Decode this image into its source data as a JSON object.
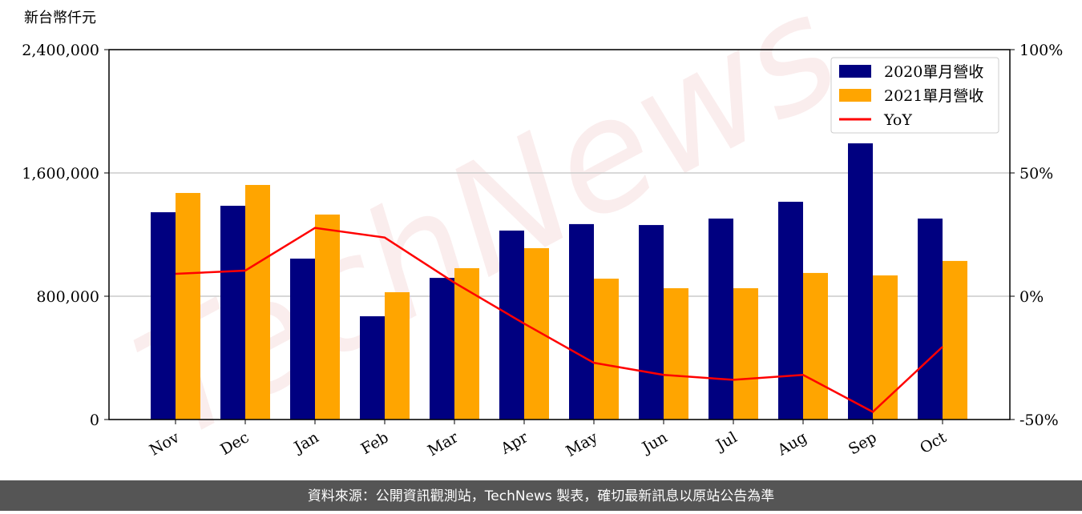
{
  "chart_data": {
    "type": "bar-line",
    "y_label": "新台幣仟元",
    "watermark": "TechNews",
    "source": "資料來源：公開資訊觀測站，TechNews 製表，確切最新訊息以原站公告為準",
    "categories": [
      "Nov",
      "Dec",
      "Jan",
      "Feb",
      "Mar",
      "Apr",
      "May",
      "Jun",
      "Jul",
      "Aug",
      "Sep",
      "Oct"
    ],
    "series": [
      {
        "name": "2020單月營收",
        "color": "#000080",
        "values": [
          1345000,
          1387000,
          1044000,
          670000,
          919000,
          1226000,
          1268000,
          1262000,
          1304000,
          1413000,
          1792000,
          1304000
        ]
      },
      {
        "name": "2021單月營收",
        "color": "#ffa500",
        "values": [
          1470000,
          1522000,
          1330000,
          826000,
          982000,
          1112000,
          914000,
          852000,
          852000,
          951000,
          935000,
          1029000
        ]
      },
      {
        "name": "YoY",
        "color": "#ff0000",
        "axis": "y2",
        "values": [
          9.1,
          10.4,
          27.7,
          23.8,
          5.5,
          -11.1,
          -27,
          -31.9,
          -33.9,
          -31.9,
          -46.9,
          -20.5
        ]
      }
    ],
    "ylim": [
      0,
      2400000
    ],
    "yticks": [
      0,
      {
        "value": 800000,
        "label": "800,000"
      },
      {
        "value": 1600000,
        "label": "1,600,000"
      },
      {
        "value": 2400000,
        "label": "2,400,000"
      }
    ],
    "y2lim": [
      -50,
      100
    ],
    "y2ticks": [
      {
        "value": -50,
        "label": "-50%"
      },
      {
        "value": 0,
        "label": "0%"
      },
      {
        "value": 50,
        "label": "50%"
      },
      {
        "value": 100,
        "label": "100%"
      }
    ],
    "grid": true,
    "legend": "upper right"
  }
}
